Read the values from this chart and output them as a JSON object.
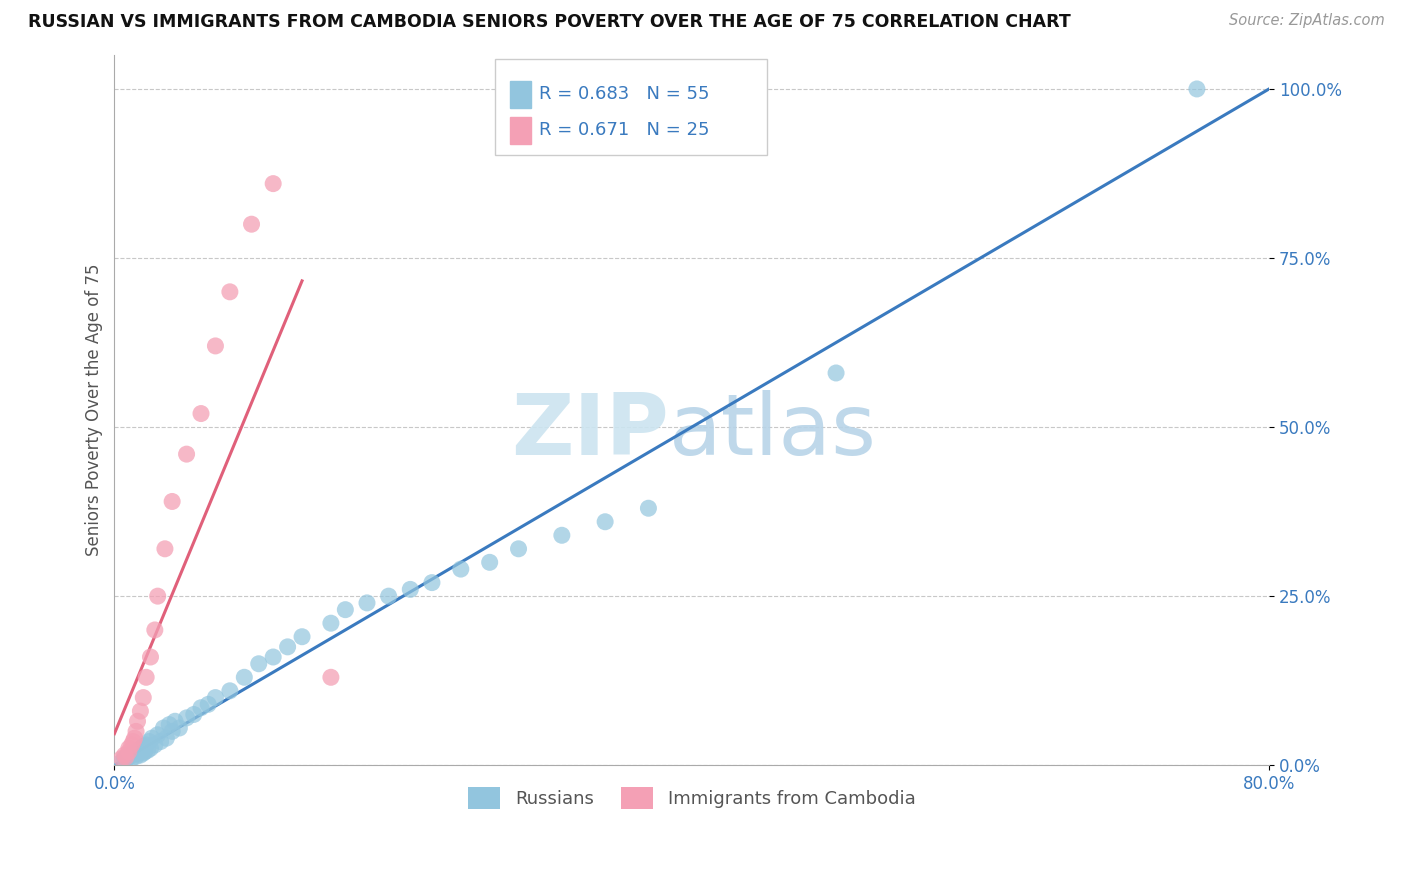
{
  "title": "RUSSIAN VS IMMIGRANTS FROM CAMBODIA SENIORS POVERTY OVER THE AGE OF 75 CORRELATION CHART",
  "source": "Source: ZipAtlas.com",
  "ylabel": "Seniors Poverty Over the Age of 75",
  "xmin": 0.0,
  "xmax": 0.8,
  "ymin": 0.0,
  "ymax": 1.05,
  "y_tick_labels": [
    "0.0%",
    "25.0%",
    "50.0%",
    "75.0%",
    "100.0%"
  ],
  "y_ticks": [
    0.0,
    0.25,
    0.5,
    0.75,
    1.0
  ],
  "r_russian": 0.683,
  "n_russian": 55,
  "r_cambodia": 0.671,
  "n_cambodia": 25,
  "color_russian": "#92c5de",
  "color_cambodia": "#f4a0b5",
  "color_russian_line": "#3a7abf",
  "color_cambodia_line": "#e0607a",
  "legend_label_russian": "Russians",
  "legend_label_cambodia": "Immigrants from Cambodia",
  "rus_x": [
    0.005,
    0.007,
    0.008,
    0.01,
    0.01,
    0.012,
    0.013,
    0.015,
    0.015,
    0.016,
    0.017,
    0.018,
    0.019,
    0.02,
    0.02,
    0.021,
    0.022,
    0.023,
    0.024,
    0.025,
    0.026,
    0.028,
    0.03,
    0.032,
    0.034,
    0.036,
    0.038,
    0.04,
    0.042,
    0.045,
    0.05,
    0.055,
    0.06,
    0.065,
    0.07,
    0.08,
    0.09,
    0.1,
    0.11,
    0.12,
    0.13,
    0.15,
    0.16,
    0.175,
    0.19,
    0.205,
    0.22,
    0.24,
    0.26,
    0.28,
    0.31,
    0.34,
    0.37,
    0.5,
    0.75
  ],
  "rus_y": [
    0.005,
    0.01,
    0.008,
    0.012,
    0.015,
    0.01,
    0.018,
    0.013,
    0.02,
    0.017,
    0.022,
    0.015,
    0.025,
    0.018,
    0.028,
    0.02,
    0.03,
    0.022,
    0.035,
    0.025,
    0.04,
    0.03,
    0.045,
    0.035,
    0.055,
    0.04,
    0.06,
    0.05,
    0.065,
    0.055,
    0.07,
    0.075,
    0.085,
    0.09,
    0.1,
    0.11,
    0.13,
    0.15,
    0.16,
    0.175,
    0.19,
    0.21,
    0.23,
    0.24,
    0.25,
    0.26,
    0.27,
    0.29,
    0.3,
    0.32,
    0.34,
    0.36,
    0.38,
    0.58,
    1.0
  ],
  "cam_x": [
    0.005,
    0.007,
    0.008,
    0.01,
    0.01,
    0.012,
    0.013,
    0.014,
    0.015,
    0.016,
    0.018,
    0.02,
    0.022,
    0.025,
    0.028,
    0.03,
    0.035,
    0.04,
    0.05,
    0.06,
    0.07,
    0.08,
    0.095,
    0.11,
    0.15
  ],
  "cam_y": [
    0.01,
    0.015,
    0.012,
    0.02,
    0.025,
    0.03,
    0.035,
    0.04,
    0.05,
    0.065,
    0.08,
    0.1,
    0.13,
    0.16,
    0.2,
    0.25,
    0.32,
    0.39,
    0.46,
    0.52,
    0.62,
    0.7,
    0.8,
    0.86,
    0.13
  ],
  "rus_line_x": [
    0.0,
    0.8
  ],
  "rus_line_y": [
    0.0,
    1.0
  ],
  "cam_line_x0": 0.005,
  "cam_line_x1": 0.095,
  "watermark_zip": "ZIP",
  "watermark_atlas": "atlas"
}
